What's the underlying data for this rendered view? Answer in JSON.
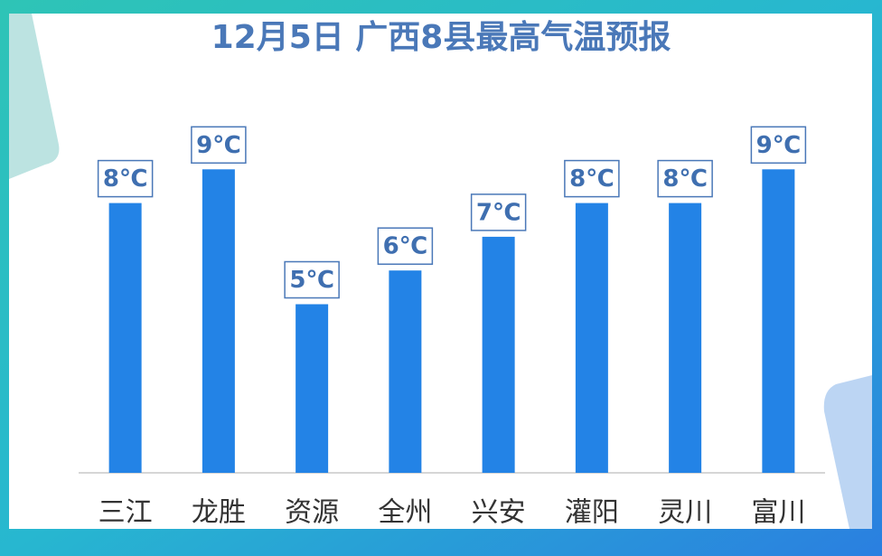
{
  "chart_data": {
    "type": "bar",
    "title": "12月5日  广西8县最高气温预报",
    "categories": [
      "三江",
      "龙胜",
      "资源",
      "全州",
      "兴安",
      "灌阳",
      "灵川",
      "富川"
    ],
    "values": [
      8,
      9,
      5,
      6,
      7,
      8,
      8,
      9
    ],
    "value_labels": [
      "8℃",
      "9℃",
      "5℃",
      "6℃",
      "7℃",
      "8℃",
      "8℃",
      "9℃"
    ],
    "color": "#2383e6",
    "ylim": [
      0,
      10
    ]
  }
}
